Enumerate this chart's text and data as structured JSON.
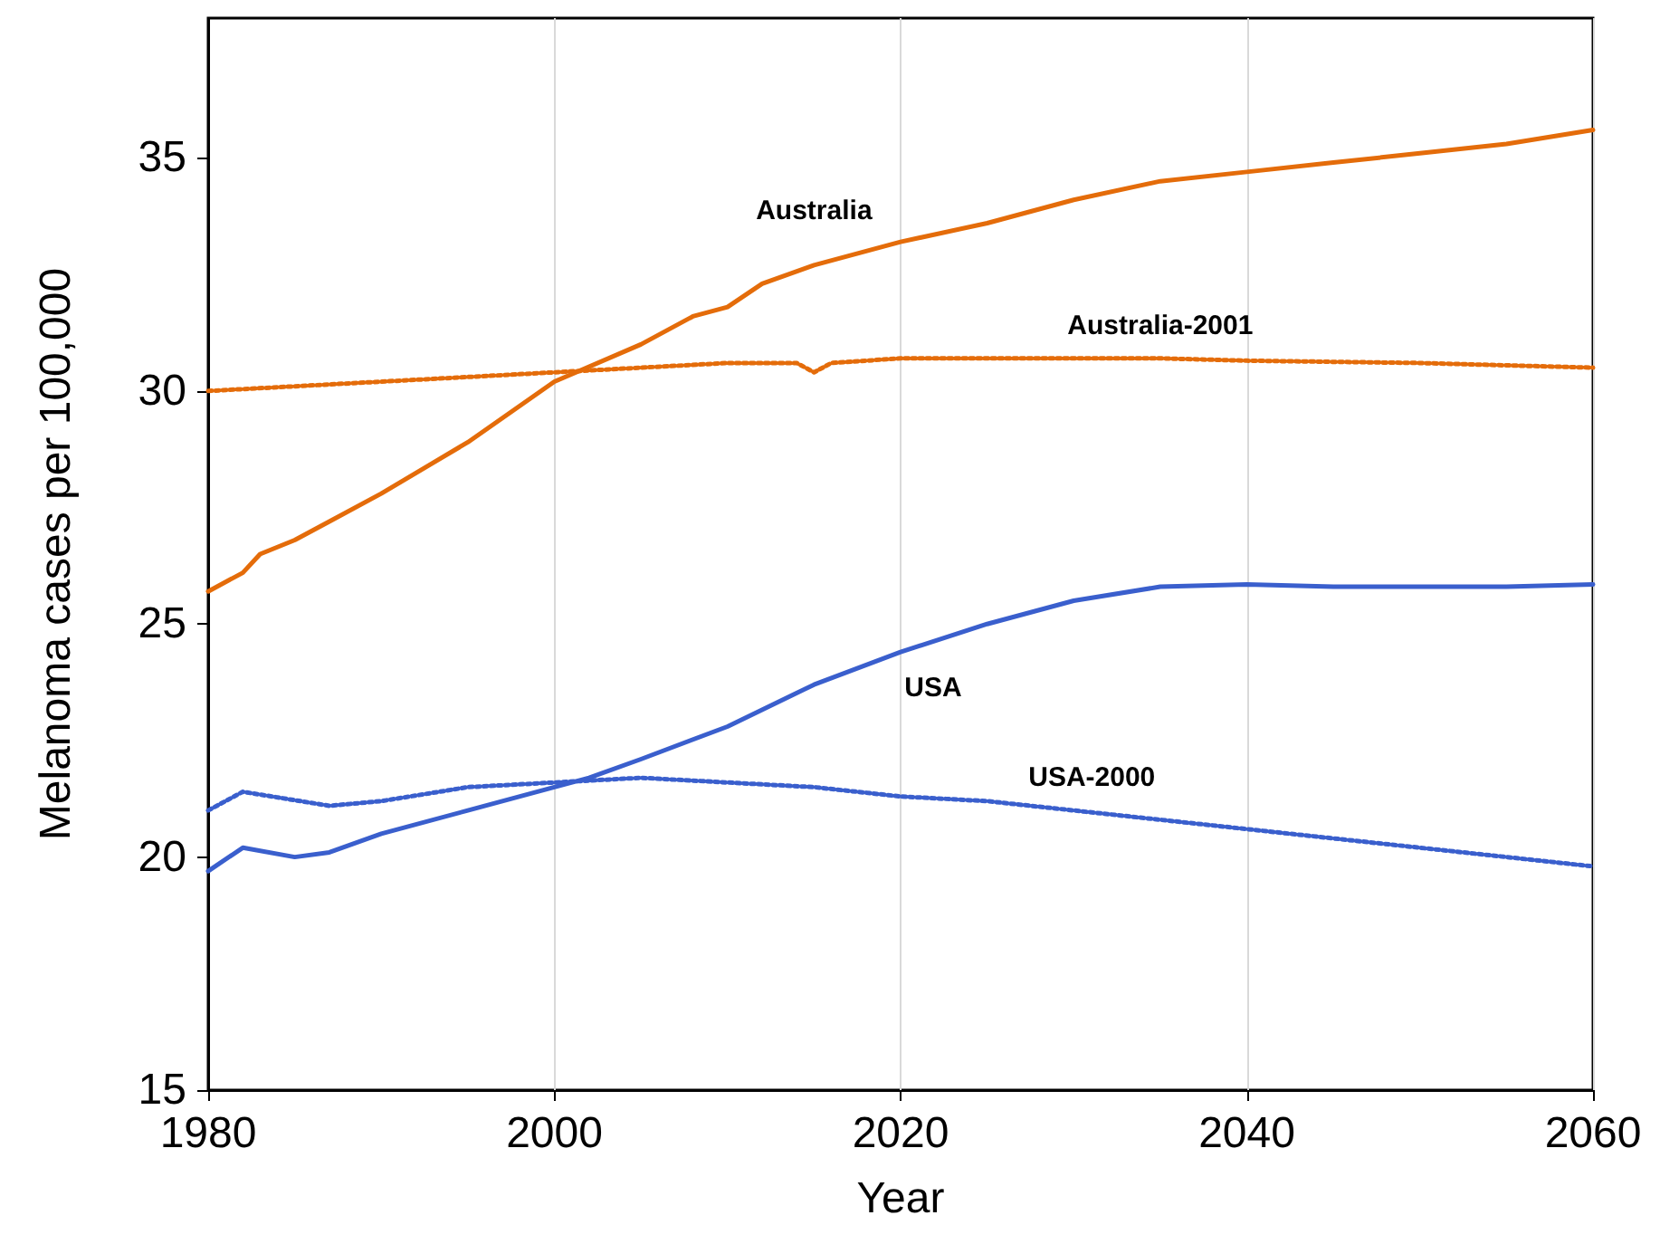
{
  "chart_data": {
    "type": "line",
    "xlabel": "Year",
    "ylabel": "Melanoma cases per 100,000",
    "xlim": [
      1980,
      2060
    ],
    "xticks": [
      1980,
      2000,
      2020,
      2040,
      2060
    ],
    "ylim": [
      15,
      38
    ],
    "yticks": [
      15,
      20,
      25,
      30,
      35
    ],
    "grid": "x",
    "marker": "none",
    "series": [
      {
        "color": "#e46c0a",
        "line_style": "solid",
        "x": [
          1980,
          1982,
          1983,
          1985,
          1987,
          1990,
          1995,
          2000,
          2005,
          2008,
          2010,
          2012,
          2015,
          2020,
          2025,
          2030,
          2035,
          2040,
          2045,
          2050,
          2055,
          2060
        ],
        "values": [
          25.7,
          26.1,
          26.5,
          26.8,
          27.2,
          27.8,
          28.9,
          30.2,
          31.0,
          31.6,
          31.8,
          32.3,
          32.7,
          33.2,
          33.6,
          34.1,
          34.5,
          34.7,
          34.9,
          35.1,
          35.3,
          35.6
        ]
      },
      {
        "color": "#e46c0a",
        "line_style": "dotted",
        "x": [
          1980,
          1990,
          2000,
          2010,
          2014,
          2015,
          2016,
          2020,
          2030,
          2035,
          2040,
          2050,
          2060
        ],
        "values": [
          30.0,
          30.2,
          30.4,
          30.6,
          30.6,
          30.4,
          30.6,
          30.7,
          30.7,
          30.7,
          30.65,
          30.6,
          30.5
        ]
      },
      {
        "color": "#3a5fcd",
        "line_style": "solid",
        "x": [
          1980,
          1982,
          1985,
          1987,
          1990,
          1995,
          2000,
          2002,
          2005,
          2010,
          2015,
          2020,
          2025,
          2030,
          2035,
          2040,
          2045,
          2050,
          2055,
          2060
        ],
        "values": [
          19.7,
          20.2,
          20.0,
          20.1,
          20.5,
          21.0,
          21.5,
          21.7,
          22.1,
          22.8,
          23.7,
          24.4,
          25.0,
          25.5,
          25.8,
          25.85,
          25.8,
          25.8,
          25.8,
          25.85
        ]
      },
      {
        "color": "#3a5fcd",
        "line_style": "dotted",
        "x": [
          1980,
          1982,
          1987,
          1990,
          1995,
          2000,
          2005,
          2010,
          2015,
          2020,
          2025,
          2030,
          2040,
          2050,
          2060
        ],
        "values": [
          21.0,
          21.4,
          21.1,
          21.2,
          21.5,
          21.6,
          21.7,
          21.6,
          21.5,
          21.3,
          21.2,
          21.0,
          20.6,
          20.2,
          19.8
        ]
      }
    ],
    "annotations": [
      {
        "text": "Australia",
        "x": 2015,
        "y": 32.7
      },
      {
        "text": "Australia-2001",
        "x": 2035,
        "y": 30.7
      },
      {
        "text": "USA",
        "x": 2020,
        "y": 24.4
      },
      {
        "text": "USA-2000",
        "x": 2030,
        "y": 21.0
      }
    ]
  }
}
